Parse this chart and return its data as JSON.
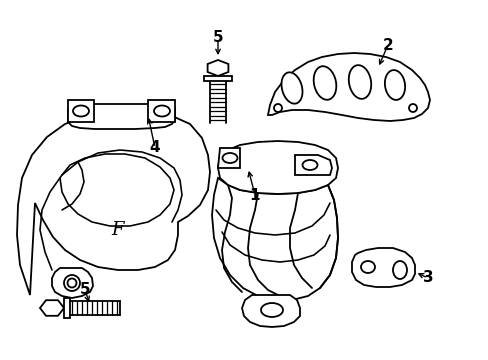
{
  "background_color": "#ffffff",
  "line_color": "#000000",
  "line_width": 1.3,
  "fig_width": 4.89,
  "fig_height": 3.6,
  "dpi": 100
}
